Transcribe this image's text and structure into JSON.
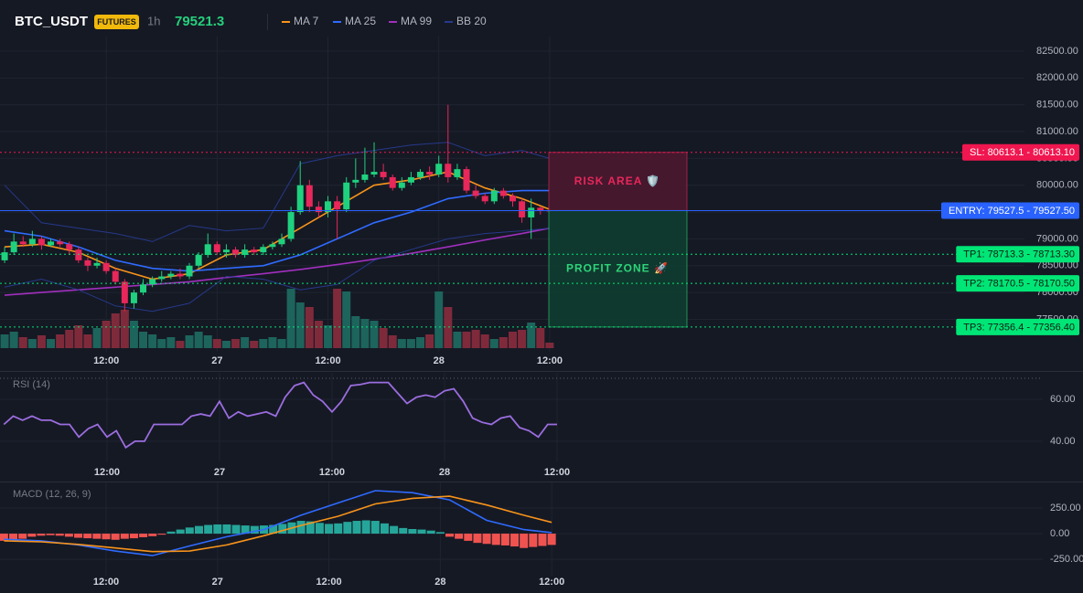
{
  "header": {
    "symbol": "BTC_USDT",
    "badge": "FUTURES",
    "interval": "1h"
  },
  "chart_data": [
    {
      "type": "candlestick",
      "x": [
        0,
        1,
        2,
        3,
        4,
        5,
        6,
        7,
        8,
        9,
        10,
        11,
        12,
        13,
        14,
        15,
        16,
        17,
        18,
        19,
        20,
        21,
        22,
        23,
        24,
        25,
        26,
        27,
        28,
        29,
        30,
        31,
        32,
        33,
        34,
        35,
        36,
        37,
        38,
        39,
        40,
        41,
        42,
        43,
        44,
        45,
        46,
        47,
        48,
        49,
        50,
        51,
        52,
        53,
        54,
        55,
        56,
        57,
        58,
        59
      ],
      "open": [
        78600,
        78750,
        78950,
        78900,
        79000,
        78880,
        78950,
        78900,
        78800,
        78600,
        78500,
        78550,
        78400,
        78200,
        77800,
        78000,
        78150,
        78250,
        78300,
        78350,
        78300,
        78500,
        78700,
        78900,
        78750,
        78800,
        78700,
        78800,
        78750,
        78850,
        78900,
        79000,
        79500,
        80000,
        79600,
        79500,
        79700,
        79550,
        80050,
        80100,
        80200,
        80250,
        80150,
        79950,
        80050,
        80150,
        80250,
        80200,
        80400,
        80150,
        80300,
        79900,
        79800,
        79700,
        79900,
        79800,
        79700,
        79400,
        79580,
        79530
      ],
      "high": [
        78850,
        79100,
        79050,
        79150,
        79050,
        79000,
        79000,
        78950,
        78850,
        78650,
        78650,
        78600,
        78450,
        78250,
        78050,
        78250,
        78300,
        78400,
        78400,
        78450,
        78550,
        78750,
        79100,
        78950,
        78900,
        78850,
        78900,
        78850,
        78900,
        78950,
        79100,
        79600,
        80450,
        80100,
        79700,
        79800,
        79800,
        80150,
        80500,
        80700,
        80800,
        80400,
        80200,
        80150,
        80250,
        80300,
        80350,
        80550,
        81500,
        80400,
        80350,
        80000,
        79850,
        79950,
        79950,
        79850,
        79750,
        79750,
        79600,
        79560
      ],
      "low": [
        78550,
        78700,
        78850,
        78850,
        78800,
        78850,
        78850,
        78700,
        78550,
        78400,
        78450,
        78350,
        78150,
        77650,
        77700,
        77950,
        78100,
        78200,
        78250,
        78250,
        78250,
        78450,
        78650,
        78700,
        78650,
        78650,
        78650,
        78700,
        78700,
        78800,
        78850,
        78950,
        79450,
        79500,
        79400,
        79400,
        79000,
        79500,
        79950,
        80050,
        80150,
        80100,
        79900,
        79900,
        80000,
        80100,
        80100,
        80150,
        80050,
        80100,
        79850,
        79750,
        79650,
        79650,
        79750,
        79600,
        79300,
        79000,
        79450,
        79500
      ],
      "close": [
        78750,
        78950,
        78900,
        79000,
        78880,
        78950,
        78900,
        78800,
        78600,
        78500,
        78550,
        78400,
        78200,
        77800,
        78000,
        78150,
        78250,
        78300,
        78350,
        78300,
        78500,
        78700,
        78900,
        78750,
        78800,
        78700,
        78800,
        78750,
        78850,
        78900,
        79000,
        79500,
        80000,
        79600,
        79500,
        79700,
        79550,
        80050,
        80100,
        80200,
        80250,
        80150,
        79950,
        80050,
        80150,
        80250,
        80200,
        80400,
        80150,
        80300,
        79900,
        79800,
        79700,
        79900,
        79800,
        79700,
        79400,
        79580,
        79530,
        79521.3
      ],
      "volume": [
        15,
        18,
        12,
        10,
        14,
        10,
        15,
        20,
        25,
        15,
        22,
        30,
        38,
        42,
        30,
        18,
        15,
        10,
        12,
        8,
        14,
        18,
        14,
        10,
        8,
        10,
        12,
        8,
        10,
        12,
        10,
        65,
        50,
        45,
        30,
        25,
        65,
        62,
        35,
        32,
        30,
        22,
        14,
        10,
        10,
        12,
        15,
        62,
        45,
        18,
        18,
        20,
        15,
        10,
        12,
        18,
        20,
        28,
        22,
        6
      ],
      "up_color": "#1fd17e",
      "down_color": "#e8275a",
      "volume_up_color": "#1d645c",
      "volume_down_color": "#7f2a3b",
      "series": [
        {
          "name": "MA 7",
          "color": "#f7931a",
          "x": [
            0,
            4,
            8,
            12,
            16,
            20,
            24,
            28,
            32,
            36,
            40,
            44,
            48,
            52,
            56,
            59
          ],
          "values": [
            78850,
            78900,
            78750,
            78450,
            78250,
            78350,
            78700,
            78800,
            79200,
            79600,
            80000,
            80100,
            80250,
            79950,
            79750,
            79550
          ]
        },
        {
          "name": "MA 25",
          "color": "#2f6bff",
          "x": [
            0,
            4,
            8,
            12,
            16,
            20,
            24,
            28,
            32,
            36,
            40,
            44,
            48,
            52,
            56,
            59
          ],
          "values": [
            79150,
            79050,
            78850,
            78600,
            78450,
            78400,
            78450,
            78500,
            78700,
            79000,
            79300,
            79500,
            79750,
            79850,
            79900,
            79900
          ]
        },
        {
          "name": "MA 99",
          "color": "#a12fbe",
          "x": [
            0,
            4,
            8,
            12,
            16,
            20,
            24,
            28,
            32,
            36,
            40,
            44,
            48,
            52,
            56,
            59
          ],
          "values": [
            77950,
            78000,
            78050,
            78100,
            78150,
            78200,
            78280,
            78350,
            78430,
            78520,
            78620,
            78730,
            78850,
            78980,
            79100,
            79200
          ]
        },
        {
          "name": "BB 20",
          "color": "#26398a",
          "x": [
            0,
            4,
            8,
            12,
            16,
            20,
            24,
            28,
            32,
            36,
            40,
            44,
            48,
            52,
            56,
            59
          ],
          "upper": [
            80000,
            79300,
            79200,
            79100,
            78950,
            79250,
            79150,
            79200,
            80400,
            80550,
            80650,
            80750,
            80800,
            80550,
            80650,
            80500
          ],
          "lower": [
            78100,
            78250,
            78050,
            77750,
            77650,
            77800,
            78300,
            78250,
            78050,
            78150,
            78600,
            78800,
            79000,
            79100,
            79150,
            79200
          ]
        }
      ],
      "levels": [
        {
          "label": "SL: 80613.1 - 80613.10",
          "value": 80613.1,
          "color": "#f0164f",
          "text_color": "#ffffff",
          "style": "dotted"
        },
        {
          "label": "ENTRY: 79527.5 - 79527.50",
          "value": 79527.5,
          "color": "#2962ff",
          "text_color": "#ffffff",
          "style": "solid"
        },
        {
          "label": "TP1: 78713.3 - 78713.30",
          "value": 78713.3,
          "color": "#00e676",
          "text_color": "#0b1f14",
          "style": "dotted"
        },
        {
          "label": "TP2: 78170.5 - 78170.50",
          "value": 78170.5,
          "color": "#00e676",
          "text_color": "#0b1f14",
          "style": "dotted"
        },
        {
          "label": "TP3: 77356.4 - 77356.40",
          "value": 77356.4,
          "color": "#00e676",
          "text_color": "#0b1f14",
          "style": "dotted"
        }
      ],
      "zones": [
        {
          "label": "RISK AREA 🛡️",
          "range": [
            80613.1,
            79527.5
          ],
          "fill": "#4a1830",
          "color": "#e8275a"
        },
        {
          "label": "PROFIT ZONE 🚀",
          "range": [
            79527.5,
            77356.4
          ],
          "fill": "#0e3d30",
          "color": "#2ed47a"
        }
      ],
      "xlim": [
        -0.5,
        110.4
      ],
      "xticks": [
        {
          "value": 11,
          "label": "12:00"
        },
        {
          "value": 23,
          "label": "27"
        },
        {
          "value": 35,
          "label": "12:00"
        },
        {
          "value": 47,
          "label": "28"
        },
        {
          "value": 59,
          "label": "12:00"
        }
      ],
      "ylim": [
        76895,
        82772
      ],
      "yticks": [
        {
          "value": 82500,
          "label": "82500.00"
        },
        {
          "value": 82000,
          "label": "82000.00"
        },
        {
          "value": 81500,
          "label": "81500.00"
        },
        {
          "value": 81000,
          "label": "81000.00"
        },
        {
          "value": 80500,
          "label": "80500.00"
        },
        {
          "value": 80000,
          "label": "80000.00"
        },
        {
          "value": 79500,
          "label": "79500.00"
        },
        {
          "value": 79000,
          "label": "79000.00"
        },
        {
          "value": 78500,
          "label": "78500.00"
        },
        {
          "value": 78000,
          "label": "78000.00"
        },
        {
          "value": 77500,
          "label": "77500.00"
        }
      ],
      "grid": true
    },
    {
      "type": "line",
      "title": "RSI (14)",
      "x": [
        0,
        1,
        2,
        3,
        4,
        5,
        6,
        7,
        8,
        9,
        10,
        11,
        12,
        13,
        14,
        15,
        16,
        17,
        18,
        19,
        20,
        21,
        22,
        23,
        24,
        25,
        26,
        27,
        28,
        29,
        30,
        31,
        32,
        33,
        34,
        35,
        36,
        37,
        38,
        39,
        40,
        41,
        42,
        43,
        44,
        45,
        46,
        47,
        48,
        49,
        50,
        51,
        52,
        53,
        54,
        55,
        56,
        57,
        58,
        59
      ],
      "values": [
        48,
        52,
        50,
        52,
        50,
        50,
        48,
        48,
        42,
        46,
        48,
        42,
        45,
        37,
        40,
        40,
        48,
        48,
        48,
        48,
        52,
        53,
        52,
        59,
        51,
        54,
        52,
        53,
        54,
        52,
        61,
        66.5,
        68,
        62,
        59,
        54,
        59,
        66.5,
        67,
        68,
        68,
        68,
        63,
        58,
        61,
        62,
        61,
        64,
        65,
        59,
        51,
        49,
        48,
        51,
        52,
        46.5,
        45,
        42,
        48,
        48
      ],
      "color": "#9b6ddf",
      "levels": [
        70
      ],
      "xlim": [
        -0.41,
        110.8
      ],
      "xticks": [
        {
          "value": 11,
          "label": "12:00"
        },
        {
          "value": 23,
          "label": "27"
        },
        {
          "value": 35,
          "label": "12:00"
        },
        {
          "value": 47,
          "label": "28"
        },
        {
          "value": 59,
          "label": "12:00"
        }
      ],
      "ylim": [
        30.4,
        72.6
      ],
      "yticks": [
        {
          "value": 40,
          "label": "40.00"
        },
        {
          "value": 60,
          "label": "60.00"
        }
      ],
      "grid": true
    },
    {
      "type": "bar",
      "title": "MACD (12, 26, 9)",
      "x": [
        0,
        1,
        2,
        3,
        4,
        5,
        6,
        7,
        8,
        9,
        10,
        11,
        12,
        13,
        14,
        15,
        16,
        17,
        18,
        19,
        20,
        21,
        22,
        23,
        24,
        25,
        26,
        27,
        28,
        29,
        30,
        31,
        32,
        33,
        34,
        35,
        36,
        37,
        38,
        39,
        40,
        41,
        42,
        43,
        44,
        45,
        46,
        47,
        48,
        49,
        50,
        51,
        52,
        53,
        54,
        55,
        56,
        57,
        58,
        59
      ],
      "values": [
        -70,
        -60,
        -50,
        -30,
        -20,
        -15,
        -20,
        -30,
        -40,
        -45,
        -50,
        -55,
        -60,
        -50,
        -45,
        -35,
        -25,
        -10,
        20,
        40,
        60,
        75,
        85,
        90,
        90,
        85,
        80,
        75,
        80,
        85,
        95,
        110,
        125,
        120,
        105,
        95,
        100,
        115,
        125,
        130,
        125,
        100,
        75,
        55,
        45,
        40,
        30,
        15,
        -30,
        -50,
        -70,
        -90,
        -100,
        -110,
        -115,
        -125,
        -140,
        -130,
        -120,
        -110
      ],
      "up_color": "#26a69a",
      "down_color": "#ef5350",
      "series": [
        {
          "color": "#2f6bff",
          "x": [
            0,
            4,
            8,
            12,
            16,
            20,
            24,
            28,
            32,
            36,
            40,
            44,
            48,
            52,
            56,
            59
          ],
          "values": [
            -55,
            -70,
            -110,
            -170,
            -215,
            -120,
            -30,
            40,
            180,
            300,
            420,
            400,
            330,
            130,
            40,
            10
          ]
        },
        {
          "color": "#f7931a",
          "x": [
            0,
            4,
            8,
            12,
            16,
            20,
            24,
            28,
            32,
            36,
            40,
            44,
            48,
            52,
            56,
            59
          ],
          "values": [
            -70,
            -80,
            -105,
            -140,
            -175,
            -170,
            -110,
            -20,
            80,
            170,
            290,
            345,
            365,
            280,
            180,
            110
          ]
        }
      ],
      "xlim": [
        -0.43,
        111.9
      ],
      "xticks": [
        {
          "value": 11,
          "label": "12:00"
        },
        {
          "value": 23,
          "label": "27"
        },
        {
          "value": 35,
          "label": "12:00"
        },
        {
          "value": 47,
          "label": "28"
        },
        {
          "value": 59,
          "label": "12:00"
        }
      ],
      "ylim": [
        -410,
        500
      ],
      "yticks": [
        {
          "value": 250,
          "label": "250.00"
        },
        {
          "value": 0,
          "label": "0.00"
        },
        {
          "value": -250,
          "label": "-250.00"
        }
      ],
      "grid": true
    }
  ]
}
